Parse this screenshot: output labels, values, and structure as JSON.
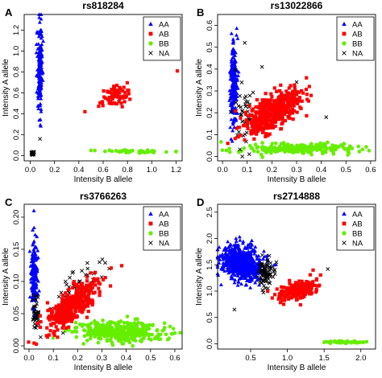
{
  "chart_data": [
    {
      "panel": "A",
      "type": "scatter",
      "title": "rs818284",
      "xlabel": "Intensity B allele",
      "ylabel": "Intensity A allele",
      "xlim": [
        -0.05,
        1.25
      ],
      "ylim": [
        -0.05,
        1.35
      ],
      "xticks": [
        0.0,
        0.2,
        0.4,
        0.6,
        0.8,
        1.0,
        1.2
      ],
      "yticks": [
        0.0,
        0.2,
        0.4,
        0.6,
        0.8,
        1.0,
        1.2
      ],
      "legend_position": "top-right",
      "series": [
        {
          "name": "AA",
          "marker": "triangle",
          "color": "#0000ff",
          "clusters": [
            {
              "cx": 0.08,
              "cy": 0.85,
              "sx": 0.012,
              "sy": 0.22,
              "slope": 0.09,
              "n": 160
            }
          ]
        },
        {
          "name": "AB",
          "marker": "square",
          "color": "#ff0000",
          "clusters": [
            {
              "cx": 0.7,
              "cy": 0.57,
              "sx": 0.06,
              "sy": 0.05,
              "slope": 0.35,
              "n": 70
            }
          ],
          "points": [
            [
              0.45,
              0.42
            ],
            [
              1.21,
              0.81
            ]
          ]
        },
        {
          "name": "BB",
          "marker": "circle",
          "color": "#66ee00",
          "clusters": [
            {
              "cx": 0.86,
              "cy": 0.04,
              "sx": 0.13,
              "sy": 0.007,
              "slope": 0,
              "n": 45
            }
          ],
          "points": [
            [
              0.5,
              0.05
            ],
            [
              1.2,
              0.04
            ]
          ]
        },
        {
          "name": "NA",
          "marker": "x",
          "color": "#000000",
          "clusters": [
            {
              "cx": 0.02,
              "cy": 0.025,
              "sx": 0.008,
              "sy": 0.01,
              "slope": 0,
              "n": 22
            }
          ],
          "points": [
            [
              0.08,
              0.16
            ]
          ]
        }
      ]
    },
    {
      "panel": "B",
      "type": "scatter",
      "title": "rs13022866",
      "xlabel": "Intensity B allele",
      "ylabel": "Intensity A allele",
      "xlim": [
        -0.02,
        0.62
      ],
      "ylim": [
        -0.02,
        0.65
      ],
      "xticks": [
        0.0,
        0.1,
        0.2,
        0.3,
        0.4,
        0.5,
        0.6
      ],
      "yticks": [
        0.0,
        0.1,
        0.2,
        0.3,
        0.4,
        0.5,
        0.6
      ],
      "legend_position": "top-right",
      "series": [
        {
          "name": "AA",
          "marker": "triangle",
          "color": "#0000ff",
          "clusters": [
            {
              "cx": 0.045,
              "cy": 0.33,
              "sx": 0.007,
              "sy": 0.1,
              "slope": 0.02,
              "n": 230
            }
          ]
        },
        {
          "name": "AB",
          "marker": "square",
          "color": "#ff0000",
          "clusters": [
            {
              "cx": 0.2,
              "cy": 0.2,
              "sx": 0.055,
              "sy": 0.035,
              "slope": 0.55,
              "n": 500
            }
          ],
          "points": [
            [
              0.34,
              0.36
            ],
            [
              0.32,
              0.3
            ]
          ]
        },
        {
          "name": "BB",
          "marker": "circle",
          "color": "#66ee00",
          "clusters": [
            {
              "cx": 0.3,
              "cy": 0.035,
              "sx": 0.11,
              "sy": 0.012,
              "slope": 0,
              "n": 230
            }
          ]
        },
        {
          "name": "NA",
          "marker": "x",
          "color": "#000000",
          "clusters": [
            {
              "cx": 0.09,
              "cy": 0.2,
              "sx": 0.025,
              "sy": 0.06,
              "slope": 0,
              "n": 45
            }
          ],
          "points": [
            [
              0.42,
              0.18
            ],
            [
              0.16,
              0.41
            ],
            [
              0.09,
              0.52
            ],
            [
              0.3,
              0.34
            ],
            [
              0.08,
              0.0
            ]
          ]
        }
      ]
    },
    {
      "panel": "C",
      "type": "scatter",
      "title": "rs3766263",
      "xlabel": "Intensity B allele",
      "ylabel": "Intensity A allele",
      "xlim": [
        -0.02,
        0.63
      ],
      "ylim": [
        -0.005,
        0.22
      ],
      "xticks": [
        0.0,
        0.1,
        0.2,
        0.3,
        0.4,
        0.5,
        0.6
      ],
      "yticks": [
        0.0,
        0.05,
        0.1,
        0.15,
        0.2
      ],
      "legend_position": "top-right",
      "series": [
        {
          "name": "AA",
          "marker": "triangle",
          "color": "#0000ff",
          "clusters": [
            {
              "cx": 0.022,
              "cy": 0.1,
              "sx": 0.007,
              "sy": 0.028,
              "slope": 0.04,
              "n": 170
            }
          ],
          "points": [
            [
              0.02,
              0.21
            ],
            [
              0.015,
              0.18
            ]
          ]
        },
        {
          "name": "AB",
          "marker": "square",
          "color": "#ff0000",
          "clusters": [
            {
              "cx": 0.18,
              "cy": 0.065,
              "sx": 0.05,
              "sy": 0.012,
              "slope": 0.28,
              "n": 430
            }
          ]
        },
        {
          "name": "BB",
          "marker": "circle",
          "color": "#66ee00",
          "clusters": [
            {
              "cx": 0.37,
              "cy": 0.022,
              "sx": 0.09,
              "sy": 0.008,
              "slope": -0.01,
              "n": 430
            }
          ],
          "points": [
            [
              0.6,
              0.02
            ],
            [
              0.58,
              0.03
            ]
          ]
        },
        {
          "name": "NA",
          "marker": "x",
          "color": "#000000",
          "clusters": [
            {
              "cx": 0.03,
              "cy": 0.05,
              "sx": 0.008,
              "sy": 0.015,
              "slope": 0,
              "n": 40
            },
            {
              "cx": 0.22,
              "cy": 0.095,
              "sx": 0.05,
              "sy": 0.015,
              "slope": 0.3,
              "n": 45
            }
          ],
          "points": [
            [
              0.33,
              0.12
            ],
            [
              0.15,
              0.1
            ],
            [
              0.29,
              0.13
            ],
            [
              0.14,
              0.02
            ],
            [
              0.1,
              0.035
            ]
          ]
        }
      ]
    },
    {
      "panel": "D",
      "type": "scatter",
      "title": "rs2714888",
      "xlabel": "Intensity B allele",
      "ylabel": "Intensity A allele",
      "xlim": [
        0.05,
        2.2
      ],
      "ylim": [
        -0.1,
        2.65
      ],
      "xticks": [
        0.5,
        1.0,
        1.5,
        2.0
      ],
      "yticks": [
        0.0,
        0.5,
        1.0,
        1.5,
        2.0,
        2.5
      ],
      "legend_position": "top-right",
      "series": [
        {
          "name": "AA",
          "marker": "triangle",
          "color": "#0000ff",
          "clusters": [
            {
              "cx": 0.38,
              "cy": 1.55,
              "sx": 0.14,
              "sy": 0.16,
              "slope": -0.3,
              "n": 650
            }
          ],
          "points": [
            [
              0.3,
              2.0
            ],
            [
              0.35,
              2.03
            ]
          ]
        },
        {
          "name": "AB",
          "marker": "square",
          "color": "#ff0000",
          "clusters": [
            {
              "cx": 1.15,
              "cy": 1.02,
              "sx": 0.13,
              "sy": 0.08,
              "slope": 0.3,
              "n": 230
            }
          ],
          "points": [
            [
              0.95,
              0.75
            ],
            [
              1.35,
              1.4
            ],
            [
              0.88,
              0.85
            ]
          ]
        },
        {
          "name": "BB",
          "marker": "circle",
          "color": "#66ee00",
          "clusters": [
            {
              "cx": 1.78,
              "cy": 0.03,
              "sx": 0.14,
              "sy": 0.01,
              "slope": 0,
              "n": 50
            }
          ],
          "points": [
            [
              1.5,
              0.03
            ]
          ]
        },
        {
          "name": "NA",
          "marker": "x",
          "color": "#000000",
          "clusters": [
            {
              "cx": 0.7,
              "cy": 1.32,
              "sx": 0.05,
              "sy": 0.14,
              "slope": -0.2,
              "n": 80
            }
          ],
          "points": [
            [
              0.85,
              1.55
            ],
            [
              0.28,
              0.65
            ],
            [
              1.55,
              1.42
            ]
          ]
        }
      ]
    }
  ]
}
